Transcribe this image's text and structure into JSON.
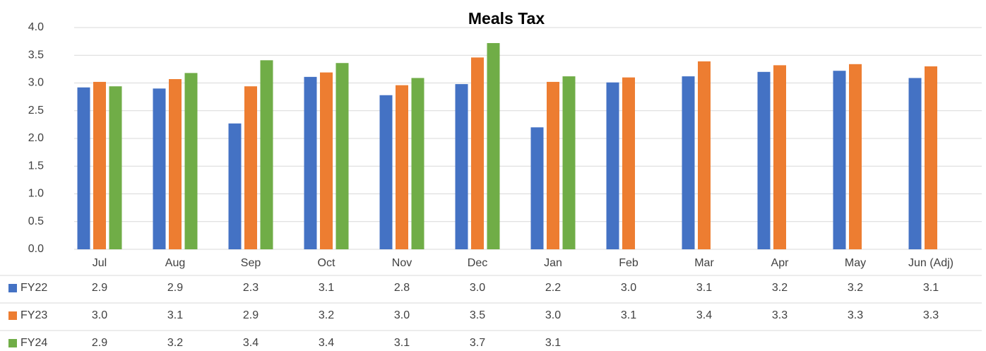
{
  "chart_data": {
    "type": "bar",
    "title": "Meals Tax",
    "categories": [
      "Jul",
      "Aug",
      "Sep",
      "Oct",
      "Nov",
      "Dec",
      "Jan",
      "Feb",
      "Mar",
      "Apr",
      "May",
      "Jun (Adj)"
    ],
    "series": [
      {
        "name": "FY22",
        "color": "#4472c4",
        "values": [
          2.92,
          2.9,
          2.27,
          3.11,
          2.78,
          2.98,
          2.2,
          3.01,
          3.12,
          3.2,
          3.22,
          3.09
        ],
        "value_labels": [
          "2.9",
          "2.9",
          "2.3",
          "3.1",
          "2.8",
          "3.0",
          "2.2",
          "3.0",
          "3.1",
          "3.2",
          "3.2",
          "3.1"
        ]
      },
      {
        "name": "FY23",
        "color": "#ed7d31",
        "values": [
          3.02,
          3.07,
          2.94,
          3.19,
          2.96,
          3.46,
          3.02,
          3.1,
          3.39,
          3.32,
          3.34,
          3.3
        ],
        "value_labels": [
          "3.0",
          "3.1",
          "2.9",
          "3.2",
          "3.0",
          "3.5",
          "3.0",
          "3.1",
          "3.4",
          "3.3",
          "3.3",
          "3.3"
        ]
      },
      {
        "name": "FY24",
        "color": "#70ad47",
        "values": [
          2.94,
          3.18,
          3.41,
          3.36,
          3.09,
          3.72,
          3.12,
          null,
          null,
          null,
          null,
          null
        ],
        "value_labels": [
          "2.9",
          "3.2",
          "3.4",
          "3.4",
          "3.1",
          "3.7",
          "3.1",
          null,
          null,
          null,
          null,
          null
        ]
      }
    ],
    "ylim": [
      0,
      4
    ],
    "yticks": [
      {
        "value": 0,
        "label": "0.0"
      },
      0.5,
      {
        "value": 1,
        "label": "1.0"
      },
      1.5,
      {
        "value": 2,
        "label": "2.0"
      },
      2.5,
      {
        "value": 3,
        "label": "3.0"
      },
      3.5,
      {
        "value": 4,
        "label": "4.0"
      }
    ],
    "grid": true
  }
}
